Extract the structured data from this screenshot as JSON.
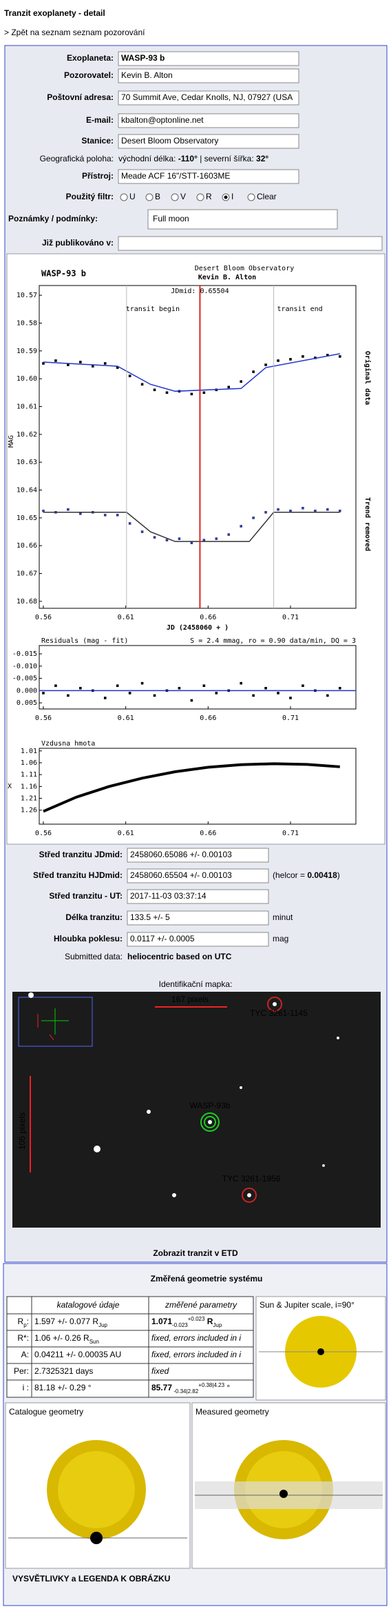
{
  "title": "Tranzit exoplanety - detail",
  "back_link": "> Zpět na seznam seznam pozorování",
  "form": {
    "fields": [
      {
        "label": "Exoplaneta:",
        "value": "WASP-93 b"
      },
      {
        "label": "Pozorovatel:",
        "value": "Kevin B. Alton"
      },
      {
        "label": "Poštovní adresa:",
        "value": "70 Summit Ave, Cedar Knolls, NJ, 07927 (USA"
      },
      {
        "label": "E-mail:",
        "value": "kbalton@optonline.net"
      },
      {
        "label": "Stanice:",
        "value": "Desert Bloom Observatory"
      }
    ],
    "geo": {
      "label": "Geografická poloha:",
      "parts": [
        {
          "t": "východní délka: "
        },
        {
          "t": "-110°",
          "s": "b"
        },
        {
          "t": " | severní šířka: "
        },
        {
          "t": "32°",
          "s": "b"
        }
      ]
    },
    "instrument": {
      "label": "Přístroj:",
      "value": "Meade ACF 16\"/STT-1603ME"
    },
    "filter": {
      "label": "Použitý filtr:",
      "options": [
        "U",
        "B",
        "V",
        "R",
        "I",
        "Clear"
      ],
      "selected": 4
    },
    "notes": {
      "label": "Poznámky / podmínky:",
      "value": "Full moon"
    },
    "published": {
      "label": "Již publikováno v:"
    }
  },
  "lightcurve": {
    "type": "scatter",
    "title": "WASP-93 b",
    "observatory": "Desert Bloom Observatory",
    "observer": "Kevin B. Alton",
    "jdmid_label": "JDmid: 0.65504",
    "jdmid": 0.65504,
    "transit_begin_label": "transit begin",
    "transit_begin": 0.6105,
    "transit_end_label": "transit end",
    "transit_end": 0.6998,
    "ylabel": "MAG",
    "xlabel": "JD (2458060 + )",
    "xlim": [
      0.5575,
      0.7497
    ],
    "ylim": [
      10.6825,
      10.5665
    ],
    "xticks": [
      0.56,
      0.61,
      0.66,
      0.71
    ],
    "yticks": [
      10.57,
      10.58,
      10.59,
      {
        "value": 10.6,
        "label": "10.60"
      },
      10.61,
      10.62,
      10.63,
      10.64,
      10.65,
      10.66,
      10.67,
      10.68
    ],
    "x": [
      0.56,
      0.5675,
      0.575,
      0.5825,
      0.59,
      0.5975,
      0.605,
      0.6125,
      0.62,
      0.6275,
      0.635,
      0.6425,
      0.65,
      0.6575,
      0.665,
      0.6725,
      0.68,
      0.6875,
      0.695,
      0.7025,
      0.71,
      0.7175,
      0.725,
      0.7325,
      0.74
    ],
    "series": [
      {
        "name": "Original data",
        "color": "#000000",
        "values": [
          10.5945,
          10.5935,
          10.595,
          10.594,
          10.5955,
          10.5945,
          10.596,
          10.599,
          10.602,
          10.604,
          10.605,
          10.6045,
          10.6055,
          10.605,
          10.604,
          10.603,
          10.601,
          10.5975,
          10.595,
          10.5935,
          10.593,
          10.592,
          10.5925,
          10.5915,
          10.592
        ]
      },
      {
        "name": "Trend removed",
        "color": "#2f3b9a",
        "values": [
          10.6475,
          10.648,
          10.647,
          10.6485,
          10.648,
          10.649,
          10.649,
          10.652,
          10.655,
          10.657,
          10.658,
          10.6575,
          10.659,
          10.658,
          10.6575,
          10.656,
          10.653,
          10.65,
          10.648,
          10.647,
          10.6475,
          10.6465,
          10.6475,
          10.647,
          10.6475
        ]
      }
    ],
    "models": [
      {
        "color": "#2233cc",
        "x": [
          0.56,
          0.605,
          0.625,
          0.64,
          0.68,
          0.695,
          0.74
        ],
        "values": [
          10.594,
          10.5955,
          10.602,
          10.6045,
          10.6035,
          10.596,
          10.591
        ]
      },
      {
        "color": "#333333",
        "x": [
          0.56,
          0.6105,
          0.625,
          0.64,
          0.685,
          0.6998,
          0.74
        ],
        "values": [
          10.648,
          10.648,
          10.655,
          10.6585,
          10.6585,
          10.648,
          10.648
        ]
      }
    ]
  },
  "residuals": {
    "type": "scatter",
    "title": "Residuals (mag - fit)",
    "stats": "S = 2.4 mmag, ro = 0.90 data/min, DQ = 3",
    "xlim": [
      0.5575,
      0.7497
    ],
    "ylim": [
      0.0075,
      -0.0184
    ],
    "xticks": [
      0.56,
      0.61,
      0.66,
      0.71
    ],
    "yticks": [
      -0.015,
      {
        "value": -0.01,
        "label": "-0.010"
      },
      -0.005,
      {
        "value": 0,
        "label": "0.000"
      },
      0.005
    ],
    "fit_level": 0,
    "fit_color": "#2233cc",
    "color": "#000000",
    "x": [
      0.56,
      0.5675,
      0.575,
      0.5825,
      0.59,
      0.5975,
      0.605,
      0.6125,
      0.62,
      0.6275,
      0.635,
      0.6425,
      0.65,
      0.6575,
      0.665,
      0.6725,
      0.68,
      0.6875,
      0.695,
      0.7025,
      0.71,
      0.7175,
      0.725,
      0.7325,
      0.74
    ],
    "values": [
      0.001,
      -0.002,
      0.002,
      -0.001,
      0,
      0.003,
      -0.002,
      0.001,
      -0.003,
      0.002,
      0,
      -0.001,
      0.004,
      -0.002,
      0.001,
      0,
      -0.003,
      0.002,
      -0.001,
      0.001,
      0.003,
      -0.002,
      0,
      0.002,
      -0.001
    ]
  },
  "airmass": {
    "type": "line",
    "title": "Vzdusna hmota",
    "ylabel": "X",
    "xlim": [
      0.5575,
      0.7497
    ],
    "ylim": [
      1.319,
      0.999
    ],
    "xticks": [
      0.56,
      0.61,
      0.66,
      0.71
    ],
    "yticks": [
      1.01,
      1.06,
      1.11,
      1.16,
      1.21,
      1.26
    ],
    "color": "#000000",
    "x": [
      0.56,
      0.58,
      0.6,
      0.62,
      0.64,
      0.66,
      0.68,
      0.7,
      0.72,
      0.74
    ],
    "values": [
      1.265,
      1.205,
      1.16,
      1.125,
      1.098,
      1.079,
      1.068,
      1.064,
      1.067,
      1.077
    ]
  },
  "results": {
    "rows": [
      {
        "label": "Střed tranzitu JDmid:",
        "value": "2458060.65086 +/- 0.00103"
      },
      {
        "label": "Střed tranzitu HJDmid:",
        "value": "2458060.65504 +/- 0.00103",
        "note": [
          {
            "t": "(helcor = "
          },
          {
            "t": "0.00418",
            "s": "b"
          },
          {
            "t": ")"
          }
        ]
      },
      {
        "label": "Střed tranzitu - UT:",
        "value": "2017-11-03 03:37:14"
      },
      {
        "label": "Délka tranzitu:",
        "value": "133.5 +/- 5",
        "unit": "minut"
      },
      {
        "label": "Hloubka poklesu:",
        "value": "0.0117 +/- 0.0005",
        "unit": "mag"
      }
    ],
    "submitted_label": "Submitted data:",
    "submitted_value": "heliocentric based on UTC"
  },
  "map": {
    "title": "Identifikační mapka:",
    "scale_x": "167 pixels",
    "scale_y": "105 pixels",
    "stars": [
      "TYC 3261-1145",
      "WASP-93b",
      "TYC 3261-1956"
    ],
    "link": "Zobrazit tranzit v ETD"
  },
  "geometry": {
    "title": "Změřená geometrie systému",
    "head_catalog": "katalogové údaje",
    "head_measured": "změřené parametry",
    "rows": [
      {
        "label": [
          {
            "t": "R"
          },
          {
            "t": "p",
            "s": "sub"
          },
          {
            "t": ":"
          }
        ],
        "catalog": [
          {
            "t": "1.597 +/- 0.077 R"
          },
          {
            "t": "Jup",
            "s": "sub"
          }
        ],
        "measured": [
          {
            "t": "1.071",
            "s": "b"
          },
          {
            "t": "-0.023",
            "s": "sub"
          },
          {
            "t": "+0.023",
            "s": "sup"
          },
          {
            "t": " R",
            "s": "b"
          },
          {
            "t": "Jup",
            "s": "sub"
          }
        ]
      },
      {
        "label": [
          {
            "t": "R*:"
          }
        ],
        "catalog": [
          {
            "t": "1.06 +/- 0.26 R"
          },
          {
            "t": "Sun",
            "s": "sub"
          }
        ],
        "measured": [
          {
            "t": "fixed, errors included in i"
          }
        ]
      },
      {
        "label": [
          {
            "t": "A:"
          }
        ],
        "catalog": [
          {
            "t": "0.04211 +/- 0.00035 AU"
          }
        ],
        "measured": [
          {
            "t": "fixed, errors included in i"
          }
        ]
      },
      {
        "label": [
          {
            "t": "Per:"
          }
        ],
        "catalog": [
          {
            "t": "2.7325321 days"
          }
        ],
        "measured": [
          {
            "t": "fixed"
          }
        ]
      },
      {
        "label": [
          {
            "t": "i :"
          }
        ],
        "catalog": [
          {
            "t": "81.18 +/- 0.29 °"
          }
        ],
        "measured": [
          {
            "t": "85.77",
            "s": "b"
          },
          {
            "t": " -0.34|2.82",
            "s": "sub"
          },
          {
            "t": "+0.38|4.23",
            "s": "sup"
          },
          {
            "t": " °"
          }
        ]
      }
    ],
    "scale_title": "Sun & Jupiter scale, i=90°",
    "catalogue_title": "Catalogue geometry",
    "measured_title": "Measured geometry",
    "legend_link": "VYSVĚTLIVKY a LEGENDA K OBRÁZKU"
  }
}
